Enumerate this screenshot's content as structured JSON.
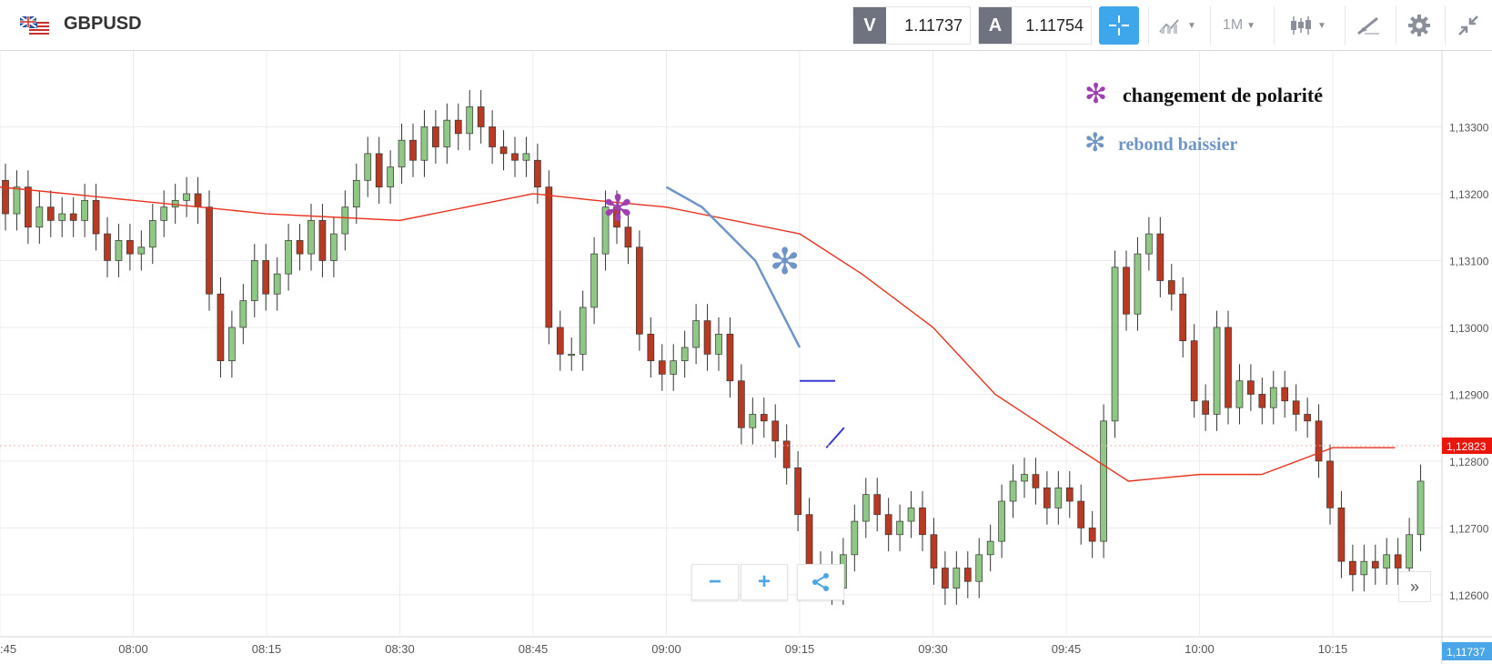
{
  "header": {
    "symbol": "GBPUSD",
    "sell_tag": "V",
    "sell_price": "1.11737",
    "buy_tag": "A",
    "buy_price": "1.11754",
    "timeframe": "1M"
  },
  "icons": [
    "gb-us-flag-icon",
    "crosshair-icon",
    "chart-type-icon",
    "candles-icon",
    "draw-icon",
    "gear-icon",
    "collapse-icon",
    "minus-icon",
    "plus-icon",
    "share-icon",
    "double-chevron-right-icon"
  ],
  "controls": {
    "zoom_out": "−",
    "zoom_in": "+",
    "expand": "»"
  },
  "annotations": {
    "legend_1": "changement de polarité",
    "legend_2": "rebond baissier",
    "legend_1_color": "#a040b0",
    "legend_2_color": "#6f95c6"
  },
  "chart_data": {
    "type": "candlestick",
    "y_ticks": [
      "1,13300",
      "1,13200",
      "1,13100",
      "1,13000",
      "1,12900",
      "1,12800",
      "1,12700",
      "1,12600"
    ],
    "x_ticks": [
      ":45",
      "08:00",
      "08:15",
      "08:30",
      "08:45",
      "09:00",
      "09:15",
      "09:30",
      "09:45",
      "10:00",
      "10:15"
    ],
    "ylim": [
      1.1254,
      1.134
    ],
    "current_price_label": "1,12823",
    "current_price": 1.12823,
    "ask_label": "1,11737",
    "colors": {
      "up": "#8fc785",
      "down": "#b83a22",
      "ma": "#e8321e",
      "trend": "#6f95c6",
      "level": "#3a3ad0"
    },
    "candles_open_close": [
      [
        1.1322,
        1.1317
      ],
      [
        1.1317,
        1.1321
      ],
      [
        1.1321,
        1.1315
      ],
      [
        1.1315,
        1.1318
      ],
      [
        1.1318,
        1.1316
      ],
      [
        1.1316,
        1.1317
      ],
      [
        1.1317,
        1.1316
      ],
      [
        1.1316,
        1.1319
      ],
      [
        1.1319,
        1.1314
      ],
      [
        1.1314,
        1.131
      ],
      [
        1.131,
        1.1313
      ],
      [
        1.1313,
        1.1311
      ],
      [
        1.1311,
        1.1312
      ],
      [
        1.1312,
        1.1316
      ],
      [
        1.1316,
        1.1318
      ],
      [
        1.1318,
        1.1319
      ],
      [
        1.1319,
        1.132
      ],
      [
        1.132,
        1.1318
      ],
      [
        1.1318,
        1.1305
      ],
      [
        1.1305,
        1.1295
      ],
      [
        1.1295,
        1.13
      ],
      [
        1.13,
        1.1304
      ],
      [
        1.1304,
        1.131
      ],
      [
        1.131,
        1.1305
      ],
      [
        1.1305,
        1.1308
      ],
      [
        1.1308,
        1.1313
      ],
      [
        1.1313,
        1.1311
      ],
      [
        1.1311,
        1.1316
      ],
      [
        1.1316,
        1.131
      ],
      [
        1.131,
        1.1314
      ],
      [
        1.1314,
        1.1318
      ],
      [
        1.1318,
        1.1322
      ],
      [
        1.1322,
        1.1326
      ],
      [
        1.1326,
        1.1321
      ],
      [
        1.1321,
        1.1324
      ],
      [
        1.1324,
        1.1328
      ],
      [
        1.1328,
        1.1325
      ],
      [
        1.1325,
        1.133
      ],
      [
        1.133,
        1.1327
      ],
      [
        1.1327,
        1.1331
      ],
      [
        1.1331,
        1.1329
      ],
      [
        1.1329,
        1.1333
      ],
      [
        1.1333,
        1.133
      ],
      [
        1.133,
        1.1327
      ],
      [
        1.1327,
        1.1326
      ],
      [
        1.1326,
        1.1325
      ],
      [
        1.1325,
        1.1326
      ],
      [
        1.1325,
        1.1321
      ],
      [
        1.1321,
        1.13
      ],
      [
        1.13,
        1.1296
      ],
      [
        1.1296,
        1.1296
      ],
      [
        1.1296,
        1.1303
      ],
      [
        1.1303,
        1.1311
      ],
      [
        1.1311,
        1.1318
      ],
      [
        1.1318,
        1.1315
      ],
      [
        1.1315,
        1.1312
      ],
      [
        1.1312,
        1.1299
      ],
      [
        1.1299,
        1.1295
      ],
      [
        1.1295,
        1.1293
      ],
      [
        1.1293,
        1.1295
      ],
      [
        1.1295,
        1.1297
      ],
      [
        1.1297,
        1.1301
      ],
      [
        1.1301,
        1.1296
      ],
      [
        1.1296,
        1.1299
      ],
      [
        1.1299,
        1.1292
      ],
      [
        1.1292,
        1.1285
      ],
      [
        1.1285,
        1.1287
      ],
      [
        1.1287,
        1.1286
      ],
      [
        1.1286,
        1.1283
      ],
      [
        1.1283,
        1.1279
      ],
      [
        1.1279,
        1.1272
      ],
      [
        1.1272,
        1.1263
      ],
      [
        1.1263,
        1.1264
      ],
      [
        1.1264,
        1.1261
      ],
      [
        1.1261,
        1.1266
      ],
      [
        1.1266,
        1.1271
      ],
      [
        1.1271,
        1.1275
      ],
      [
        1.1275,
        1.1272
      ],
      [
        1.1272,
        1.1269
      ],
      [
        1.1269,
        1.1271
      ],
      [
        1.1271,
        1.1273
      ],
      [
        1.1273,
        1.1269
      ],
      [
        1.1269,
        1.1264
      ],
      [
        1.1264,
        1.1261
      ],
      [
        1.1261,
        1.1264
      ],
      [
        1.1264,
        1.1262
      ],
      [
        1.1262,
        1.1266
      ],
      [
        1.1266,
        1.1268
      ],
      [
        1.1268,
        1.1274
      ],
      [
        1.1274,
        1.1277
      ],
      [
        1.1277,
        1.1278
      ],
      [
        1.1278,
        1.1276
      ],
      [
        1.1276,
        1.1273
      ],
      [
        1.1273,
        1.1276
      ],
      [
        1.1276,
        1.1274
      ],
      [
        1.1274,
        1.127
      ],
      [
        1.127,
        1.1268
      ],
      [
        1.1268,
        1.1286
      ],
      [
        1.1286,
        1.1309
      ],
      [
        1.1309,
        1.1302
      ],
      [
        1.1302,
        1.1311
      ],
      [
        1.1311,
        1.1314
      ],
      [
        1.1314,
        1.1307
      ],
      [
        1.1307,
        1.1305
      ],
      [
        1.1305,
        1.1298
      ],
      [
        1.1298,
        1.1289
      ],
      [
        1.1289,
        1.1287
      ],
      [
        1.1287,
        1.13
      ],
      [
        1.13,
        1.1288
      ],
      [
        1.1288,
        1.1292
      ],
      [
        1.1292,
        1.129
      ],
      [
        1.129,
        1.1288
      ],
      [
        1.1288,
        1.1291
      ],
      [
        1.1291,
        1.1289
      ],
      [
        1.1289,
        1.1287
      ],
      [
        1.1287,
        1.1286
      ],
      [
        1.1286,
        1.128
      ],
      [
        1.128,
        1.1273
      ],
      [
        1.1273,
        1.1265
      ],
      [
        1.1265,
        1.1263
      ],
      [
        1.1263,
        1.1265
      ],
      [
        1.1265,
        1.1264
      ],
      [
        1.1264,
        1.1266
      ],
      [
        1.1266,
        1.1264
      ],
      [
        1.1264,
        1.1269
      ],
      [
        1.1269,
        1.1277
      ]
    ],
    "moving_average": [
      [
        ":45",
        1.1321
      ],
      [
        "08:00",
        1.1319
      ],
      [
        "08:15",
        1.1317
      ],
      [
        "08:30",
        1.1316
      ],
      [
        "08:45",
        1.132
      ],
      [
        "08:52",
        1.1319
      ],
      [
        "09:00",
        1.1318
      ],
      [
        "09:15",
        1.1314
      ],
      [
        "09:22",
        1.1308
      ],
      [
        "09:30",
        1.13
      ],
      [
        "09:37",
        1.129
      ],
      [
        "09:45",
        1.1283
      ],
      [
        "09:52",
        1.1277
      ],
      [
        "10:00",
        1.1278
      ],
      [
        "10:07",
        1.1278
      ],
      [
        "10:15",
        1.1282
      ],
      [
        "10:22",
        1.1282
      ]
    ],
    "drawn_lines": [
      {
        "name": "bearish-trend-curve",
        "points": [
          [
            "09:00",
            1.1321
          ],
          [
            "09:04",
            1.1318
          ],
          [
            "09:10",
            1.131
          ],
          [
            "09:15",
            1.1297
          ]
        ]
      },
      {
        "name": "resistance-segment",
        "points": [
          [
            "09:15",
            1.1292
          ],
          [
            "09:19",
            1.1292
          ]
        ]
      },
      {
        "name": "rebound-segment",
        "points": [
          [
            "09:18",
            1.1282
          ],
          [
            "09:20",
            1.1285
          ]
        ]
      }
    ]
  }
}
